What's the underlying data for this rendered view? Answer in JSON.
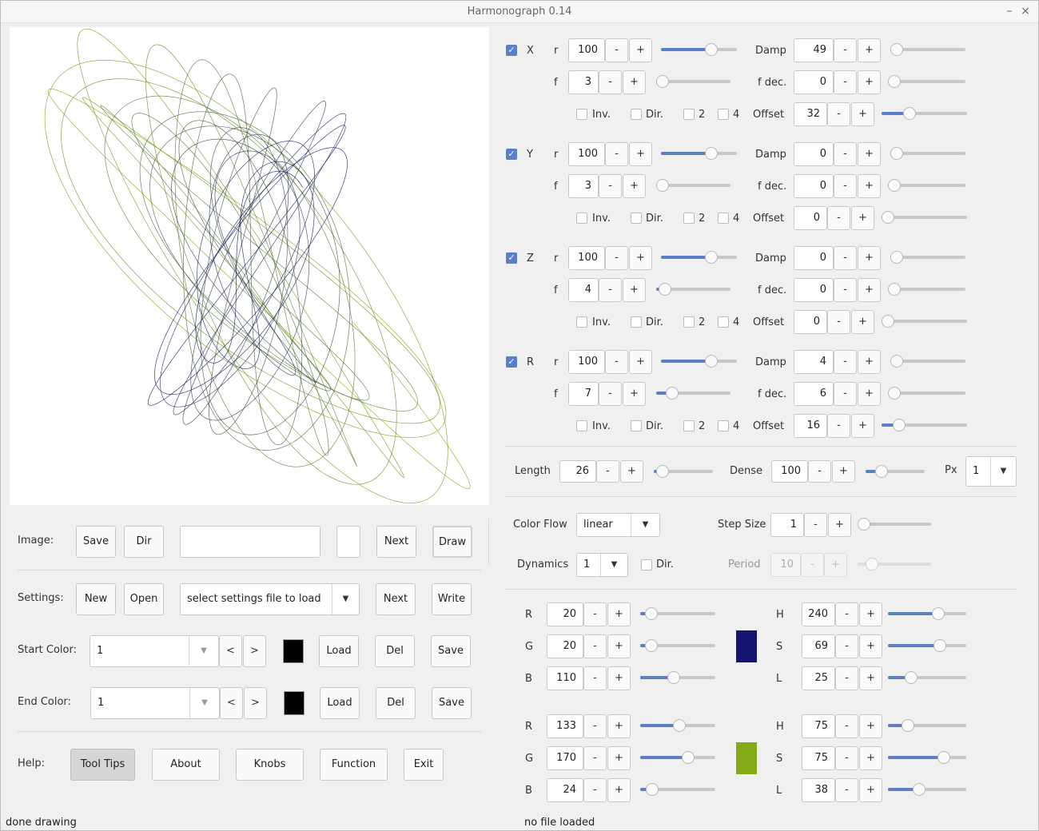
{
  "window": {
    "title": "Harmonograph 0.14",
    "minimize": "–",
    "close": "×"
  },
  "image_row": {
    "label": "Image:",
    "save": "Save",
    "dir": "Dir",
    "filename": "",
    "next": "Next",
    "draw": "Draw"
  },
  "settings_row": {
    "label": "Settings:",
    "new": "New",
    "open": "Open",
    "file_select": "select settings file to load",
    "next": "Next",
    "write": "Write"
  },
  "start_color": {
    "label": "Start Color:",
    "value": "1",
    "prev": "<",
    "next": ">",
    "load": "Load",
    "del": "Del",
    "save": "Save",
    "swatch": "#000000"
  },
  "end_color": {
    "label": "End Color:",
    "value": "1",
    "prev": "<",
    "next": ">",
    "load": "Load",
    "del": "Del",
    "save": "Save",
    "swatch": "#000000"
  },
  "help_row": {
    "label": "Help:",
    "tooltips": "Tool Tips",
    "about": "About",
    "knobs": "Knobs",
    "function": "Function",
    "exit": "Exit"
  },
  "status": {
    "left": "done drawing",
    "right": "no file loaded"
  },
  "labels": {
    "r": "r",
    "f": "f",
    "damp": "Damp",
    "fdec": "f dec.",
    "offset": "Offset",
    "inv": "Inv.",
    "dir": "Dir.",
    "two": "2",
    "four": "4",
    "minus": "-",
    "plus": "+"
  },
  "axes": [
    {
      "name": "X",
      "enabled": true,
      "r": "100",
      "f": "3",
      "damp": "49",
      "fdec": "0",
      "offset": "32",
      "r_level": 0.7,
      "f_level": 0.0,
      "damp_level": 0.0,
      "fdec_level": 0.0,
      "offset_level": 0.3
    },
    {
      "name": "Y",
      "enabled": true,
      "r": "100",
      "f": "3",
      "damp": "0",
      "fdec": "0",
      "offset": "0",
      "r_level": 0.7,
      "f_level": 0.0,
      "damp_level": 0.0,
      "fdec_level": 0.0,
      "offset_level": 0.0
    },
    {
      "name": "Z",
      "enabled": true,
      "r": "100",
      "f": "4",
      "damp": "0",
      "fdec": "0",
      "offset": "0",
      "r_level": 0.7,
      "f_level": 0.04,
      "damp_level": 0.0,
      "fdec_level": 0.0,
      "offset_level": 0.0
    },
    {
      "name": "R",
      "enabled": true,
      "r": "100",
      "f": "7",
      "damp": "4",
      "fdec": "6",
      "offset": "16",
      "r_level": 0.7,
      "f_level": 0.15,
      "damp_level": 0.0,
      "fdec_level": 0.0,
      "offset_level": 0.15
    }
  ],
  "length_row": {
    "length_label": "Length",
    "length": "26",
    "dense_label": "Dense",
    "dense": "100",
    "px_label": "Px",
    "px": "1",
    "length_level": 0.05,
    "dense_level": 0.2
  },
  "flow": {
    "color_flow_label": "Color Flow",
    "color_flow": "linear",
    "step_size_label": "Step Size",
    "step_size": "1",
    "dynamics_label": "Dynamics",
    "dynamics": "1",
    "dir_label": "Dir.",
    "period_label": "Period",
    "period": "10"
  },
  "start_rgb": {
    "r_label": "R",
    "g_label": "G",
    "b_label": "B",
    "r": "20",
    "g": "20",
    "b": "110",
    "r_level": 0.08,
    "g_level": 0.08,
    "b_level": 0.43,
    "h_label": "H",
    "s_label": "S",
    "l_label": "L",
    "h": "240",
    "s": "69",
    "l": "25",
    "h_level": 0.67,
    "s_level": 0.69,
    "l_level": 0.25,
    "color": "#14146e"
  },
  "end_rgb": {
    "r_label": "R",
    "g_label": "G",
    "b_label": "B",
    "r": "133",
    "g": "170",
    "b": "24",
    "r_level": 0.52,
    "g_level": 0.67,
    "b_level": 0.09,
    "h_label": "H",
    "s_label": "S",
    "l_label": "L",
    "h": "75",
    "s": "75",
    "l": "38",
    "h_level": 0.21,
    "s_level": 0.75,
    "l_level": 0.38,
    "color": "#85aa18"
  },
  "colors": {
    "accent": "#5b7fc6",
    "curve_start": "#14146e",
    "curve_end": "#85aa18"
  }
}
